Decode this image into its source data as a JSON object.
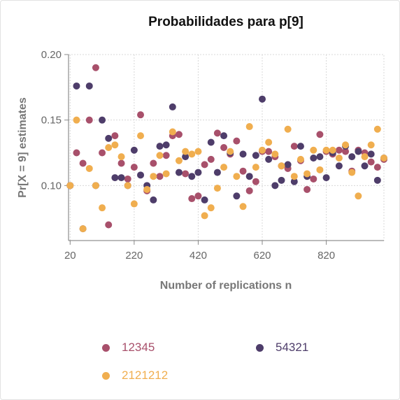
{
  "chart_data": {
    "type": "scatter",
    "title": "Probabilidades para p[9]",
    "xlabel": "Number of replications n",
    "ylabel": "Pr[X = 9] estimates",
    "xlim": [
      15,
      1000
    ],
    "ylim": [
      0.058,
      0.2
    ],
    "xticks": [
      20,
      220,
      420,
      620,
      820
    ],
    "yticks": [
      0.1,
      0.15,
      0.2
    ],
    "ytick_labels": [
      "0.10",
      "0.15",
      "0.20"
    ],
    "grid": true,
    "legend_position": "bottom",
    "series": [
      {
        "name": "12345",
        "color": "#a8506b",
        "x": [
          20,
          40,
          60,
          80,
          100,
          120,
          140,
          160,
          180,
          200,
          220,
          240,
          260,
          280,
          300,
          320,
          340,
          360,
          380,
          400,
          420,
          440,
          460,
          480,
          500,
          520,
          540,
          560,
          580,
          600,
          620,
          640,
          660,
          680,
          700,
          720,
          740,
          760,
          780,
          800,
          820,
          840,
          860,
          880,
          900,
          920,
          940,
          960,
          980,
          1000
        ],
        "y": [
          0.1,
          0.125,
          0.117,
          0.15,
          0.19,
          0.125,
          0.07,
          0.138,
          0.117,
          0.105,
          0.114,
          0.154,
          0.096,
          0.117,
          0.107,
          0.123,
          0.138,
          0.139,
          0.109,
          0.09,
          0.092,
          0.116,
          0.12,
          0.14,
          0.129,
          0.124,
          0.134,
          0.111,
          0.096,
          0.103,
          0.126,
          0.126,
          0.122,
          0.115,
          0.113,
          0.13,
          0.119,
          0.097,
          0.105,
          0.139,
          0.126,
          0.124,
          0.127,
          0.126,
          0.111,
          0.127,
          0.125,
          0.118,
          0.114,
          0.12
        ]
      },
      {
        "name": "54321",
        "color": "#4e3d6a",
        "x": [
          20,
          40,
          60,
          80,
          100,
          120,
          140,
          160,
          180,
          200,
          220,
          240,
          260,
          280,
          300,
          320,
          340,
          360,
          380,
          400,
          420,
          440,
          460,
          480,
          500,
          520,
          540,
          560,
          580,
          600,
          620,
          640,
          660,
          680,
          700,
          720,
          740,
          760,
          780,
          800,
          820,
          840,
          860,
          880,
          900,
          920,
          940,
          960,
          980,
          1000
        ],
        "y": [
          0.1,
          0.176,
          0.067,
          0.176,
          0.1,
          0.15,
          0.136,
          0.106,
          0.106,
          0.1,
          0.127,
          0.108,
          0.1,
          0.089,
          0.13,
          0.131,
          0.16,
          0.11,
          0.122,
          0.107,
          0.11,
          0.089,
          0.133,
          0.11,
          0.138,
          0.125,
          0.092,
          0.124,
          0.107,
          0.123,
          0.166,
          0.12,
          0.1,
          0.104,
          0.116,
          0.103,
          0.13,
          0.107,
          0.121,
          0.122,
          0.106,
          0.125,
          0.115,
          0.13,
          0.122,
          0.126,
          0.115,
          0.124,
          0.104,
          0.121
        ]
      },
      {
        "name": "2121212",
        "color": "#f0ae4f",
        "x": [
          20,
          40,
          60,
          80,
          100,
          120,
          140,
          160,
          180,
          200,
          220,
          240,
          260,
          280,
          300,
          320,
          340,
          360,
          380,
          400,
          420,
          440,
          460,
          480,
          500,
          520,
          540,
          560,
          580,
          600,
          620,
          640,
          660,
          680,
          700,
          720,
          740,
          760,
          780,
          800,
          820,
          840,
          860,
          880,
          900,
          920,
          940,
          960,
          980,
          1000
        ],
        "y": [
          0.1,
          0.15,
          0.067,
          0.113,
          0.1,
          0.083,
          0.129,
          0.131,
          0.122,
          0.1,
          0.086,
          0.138,
          0.097,
          0.107,
          0.123,
          0.109,
          0.141,
          0.119,
          0.126,
          0.124,
          0.126,
          0.077,
          0.083,
          0.098,
          0.114,
          0.126,
          0.107,
          0.084,
          0.145,
          0.114,
          0.127,
          0.133,
          0.124,
          0.115,
          0.143,
          0.107,
          0.12,
          0.109,
          0.127,
          0.112,
          0.127,
          0.127,
          0.121,
          0.131,
          0.11,
          0.092,
          0.122,
          0.131,
          0.143,
          0.121
        ]
      }
    ]
  }
}
